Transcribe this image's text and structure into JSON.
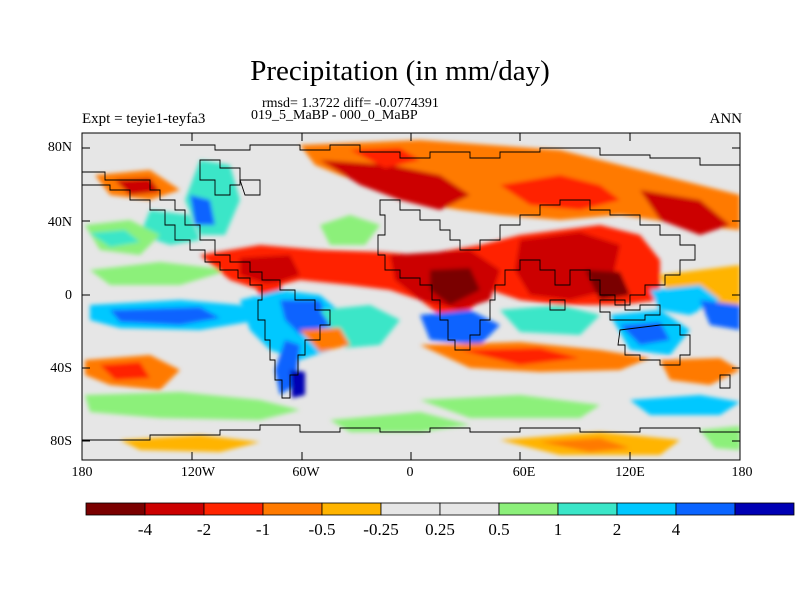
{
  "title": "Precipitation (in mm/day)",
  "stats": "rmsd= 1.3722 diff= -0.0774391",
  "experiment_line": "019_5_MaBP - 000_0_MaBP",
  "left_label": "Expt = teyie1-teyfa3",
  "right_label": "ANN",
  "y_ticks": [
    "80N",
    "40N",
    "0",
    "40S",
    "80S"
  ],
  "x_ticks": [
    "180",
    "120W",
    "60W",
    "0",
    "60E",
    "120E",
    "180"
  ],
  "colorbar": {
    "colors": [
      "#7a0000",
      "#cc0000",
      "#ff2400",
      "#ff7a00",
      "#ffb400",
      "#e6e6e6",
      "#e6e6e6",
      "#8cf07a",
      "#3ae6c8",
      "#00c8ff",
      "#0a64ff",
      "#0000b4"
    ],
    "labels": [
      "-4",
      "-2",
      "-1",
      "-0.5",
      "-0.25",
      "0.25",
      "0.5",
      "1",
      "2",
      "4"
    ]
  },
  "map": {
    "background": "#e6e6e6"
  }
}
